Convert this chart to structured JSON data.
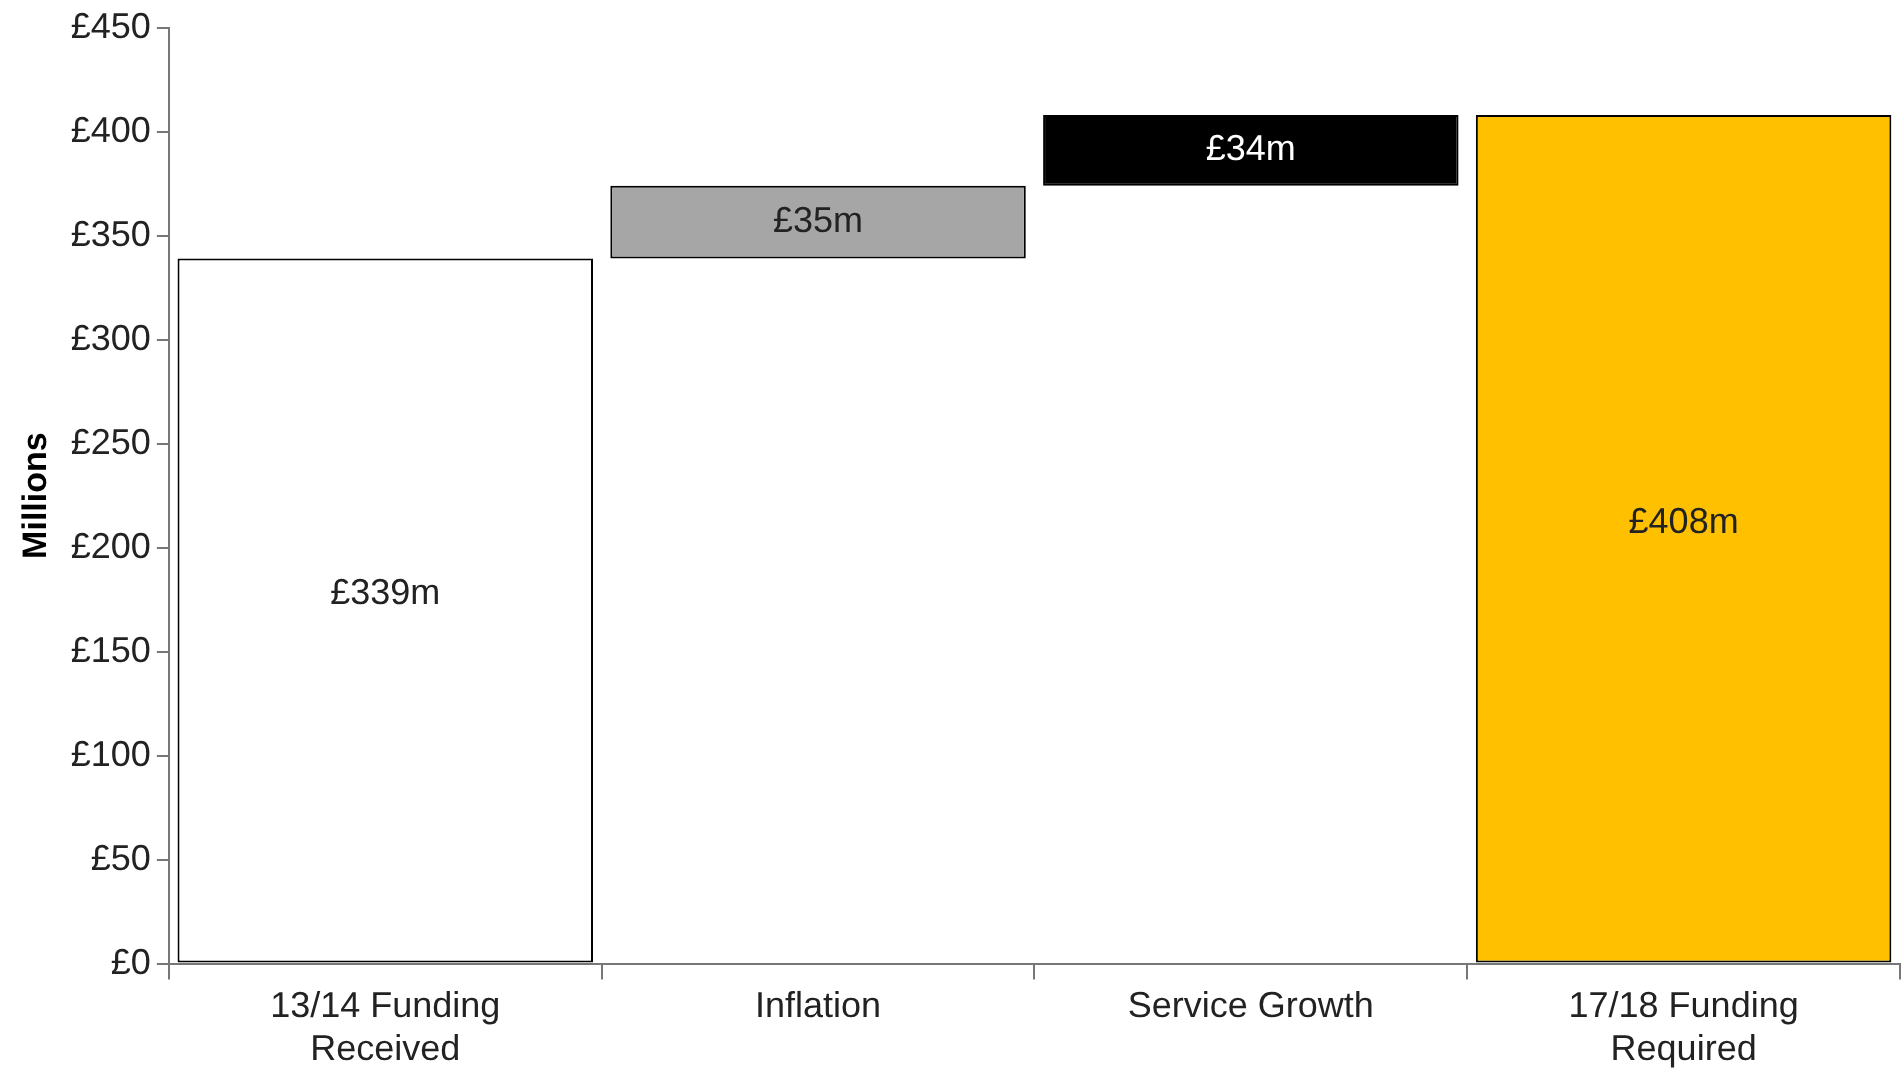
{
  "chart_data": {
    "type": "bar",
    "ylabel": "Millions",
    "categories": [
      "13/14 Funding Received",
      "Inflation",
      "Service Growth",
      "17/18 Funding Required"
    ],
    "values": [
      339,
      35,
      34,
      408
    ],
    "base": [
      0,
      339,
      374,
      0
    ],
    "colors": [
      "#ffffff",
      "#a6a6a6",
      "#000000",
      "#ffc000"
    ],
    "value_labels": [
      "£339m",
      "£35m",
      "£34m",
      "£408m"
    ],
    "ylim": [
      0,
      450
    ],
    "yticks": [
      {
        "value": 0,
        "label": "£0"
      },
      {
        "value": 50,
        "label": "£50"
      },
      {
        "value": 100,
        "label": "£100"
      },
      {
        "value": 150,
        "label": "£150"
      },
      {
        "value": 200,
        "label": "£200"
      },
      {
        "value": 250,
        "label": "£250"
      },
      {
        "value": 300,
        "label": "£300"
      },
      {
        "value": 350,
        "label": "£350"
      },
      {
        "value": 400,
        "label": "£400"
      },
      {
        "value": 450,
        "label": "£450"
      }
    ],
    "grid": false,
    "legend": false
  }
}
